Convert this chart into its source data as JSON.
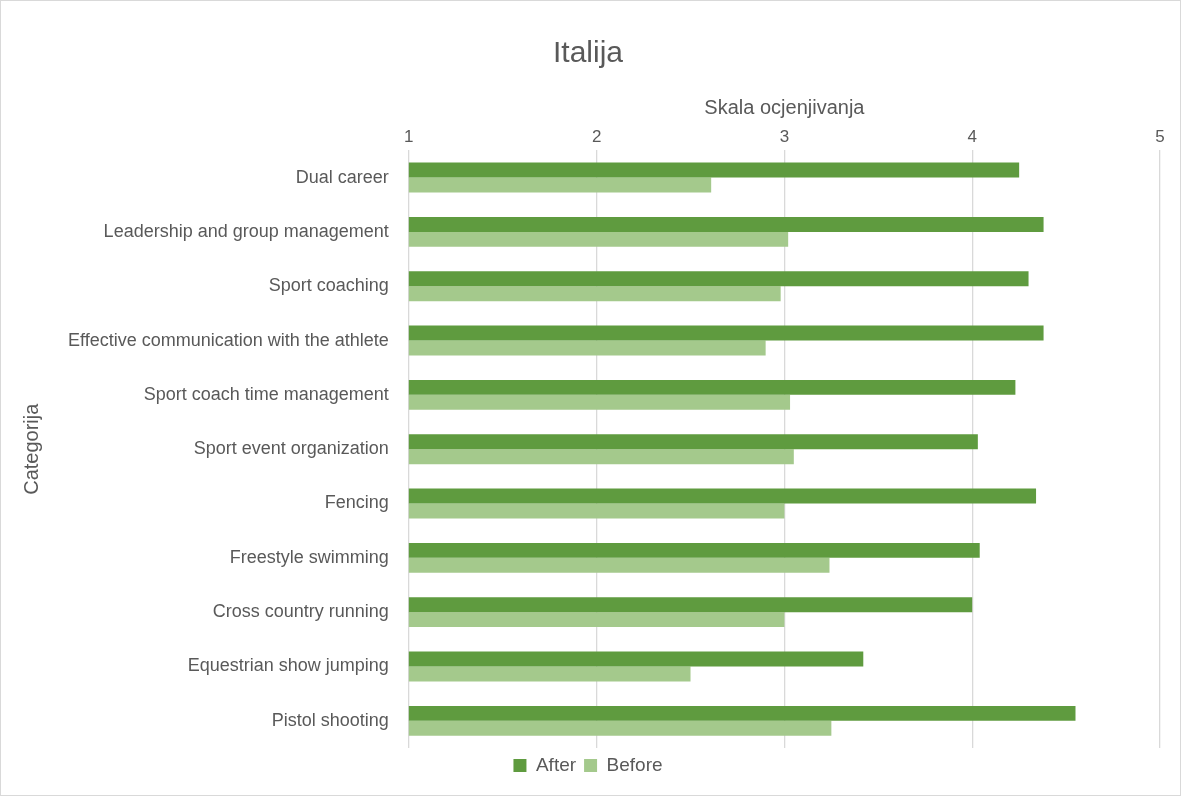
{
  "chart_data": {
    "type": "bar",
    "orientation": "horizontal",
    "title": "Italija",
    "xlabel": "Skala ocjenjivanja",
    "ylabel": "Categorija",
    "categories": [
      "Dual career",
      "Leadership and group management",
      "Sport coaching",
      "Effective communication with the athlete",
      "Sport coach time management",
      "Sport event organization",
      "Fencing",
      "Freestyle swimming",
      "Cross country running",
      "Equestrian show jumping",
      "Pistol shooting"
    ],
    "series": [
      {
        "name": "After",
        "color": "#5f9b3f",
        "values": [
          4.25,
          4.38,
          4.3,
          4.38,
          4.23,
          4.03,
          4.34,
          4.04,
          4.0,
          3.42,
          4.55
        ]
      },
      {
        "name": "Before",
        "color": "#a4c98c",
        "values": [
          2.61,
          3.02,
          2.98,
          2.9,
          3.03,
          3.05,
          3.0,
          3.24,
          3.0,
          2.5,
          3.25
        ]
      }
    ],
    "xlim": [
      1,
      5
    ],
    "xticks": [
      1,
      2,
      3,
      4,
      5
    ],
    "grid": "x",
    "legend": "bottom"
  }
}
